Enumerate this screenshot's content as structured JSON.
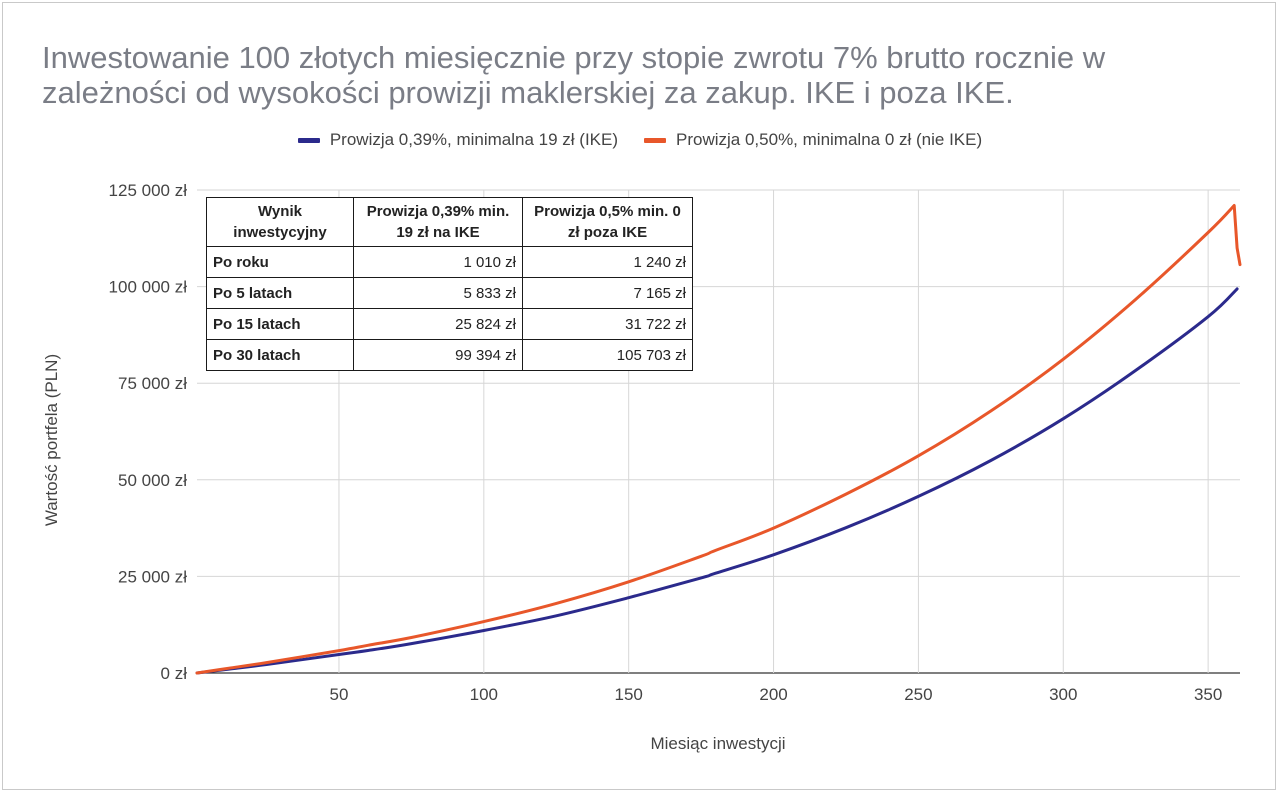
{
  "title": "Inwestowanie 100 złotych miesięcznie przy stopie zwrotu 7% brutto rocznie w zależności od wysokości prowizji maklerskiej za zakup. IKE i poza IKE.",
  "legend": [
    {
      "label": "Prowizja 0,39%, minimalna 19 zł (IKE)",
      "color": "#2b2a8c"
    },
    {
      "label": "Prowizja 0,50%, minimalna 0 zł (nie IKE)",
      "color": "#e8572a"
    }
  ],
  "table": {
    "headers": [
      "Wynik inwestycyjny",
      "Prowizja 0,39% min. 19 zł na IKE",
      "Prowizja 0,5% min. 0 zł poza IKE"
    ],
    "rows": [
      {
        "label": "Po roku",
        "ike": "1 010 zł",
        "nie_ike": "1 240 zł"
      },
      {
        "label": "Po 5 latach",
        "ike": "5 833 zł",
        "nie_ike": "7 165 zł"
      },
      {
        "label": "Po 15 latach",
        "ike": "25 824 zł",
        "nie_ike": "31 722 zł"
      },
      {
        "label": "Po 30 latach",
        "ike": "99 394 zł",
        "nie_ike": "105 703 zł"
      }
    ]
  },
  "chart_data": {
    "type": "line",
    "title": "Inwestowanie 100 złotych miesięcznie przy stopie zwrotu 7% brutto rocznie w zależności od wysokości prowizji maklerskiej za zakup. IKE i poza IKE.",
    "xlabel": "Miesiąc inwestycji",
    "ylabel": "Wartość portfela (PLN)",
    "xlim": [
      1,
      361
    ],
    "ylim": [
      0,
      125000
    ],
    "xticks": [
      50,
      100,
      150,
      200,
      250,
      300,
      350
    ],
    "yticks": [
      0,
      25000,
      50000,
      75000,
      100000,
      125000
    ],
    "ytick_labels": [
      "0 zł",
      "25 000 zł",
      "50 000 zł",
      "75 000 zł",
      "100 000 zł",
      "125 000 zł"
    ],
    "grid": true,
    "legend_position": "top",
    "series": [
      {
        "name": "Prowizja 0,39%, minimalna 19 zł (IKE)",
        "color": "#2b2a8c",
        "x": [
          1,
          12,
          25,
          50,
          60,
          75,
          100,
          125,
          150,
          175,
          180,
          200,
          225,
          250,
          275,
          300,
          325,
          350,
          360
        ],
        "y": [
          0,
          1010,
          2200,
          4800,
          5833,
          7600,
          11000,
          14800,
          19500,
          24600,
          25824,
          30600,
          37600,
          45700,
          55000,
          65800,
          78300,
          92200,
          99394
        ]
      },
      {
        "name": "Prowizja 0,50%, minimalna 0 zł (nie IKE)",
        "color": "#e8572a",
        "x": [
          1,
          12,
          25,
          50,
          60,
          75,
          100,
          125,
          150,
          175,
          180,
          200,
          225,
          250,
          275,
          300,
          325,
          350,
          359,
          360,
          361
        ],
        "y": [
          0,
          1240,
          2700,
          5800,
          7165,
          9200,
          13300,
          18000,
          23600,
          30200,
          31722,
          37500,
          46300,
          56200,
          67800,
          81200,
          96700,
          114000,
          121000,
          110000,
          105703
        ]
      }
    ]
  }
}
